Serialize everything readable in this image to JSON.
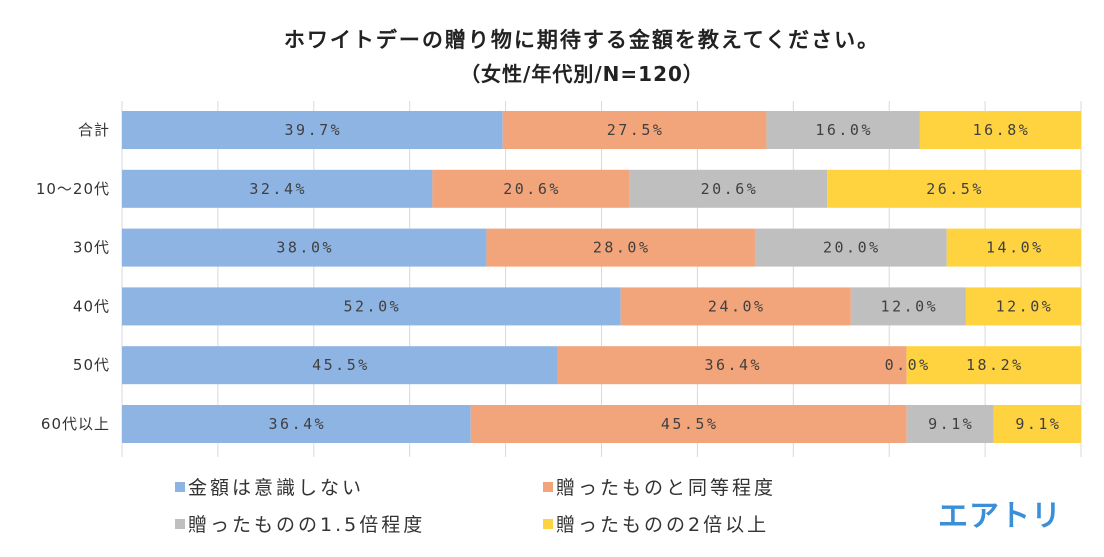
{
  "chart_data": {
    "type": "bar",
    "orientation": "horizontal",
    "stacking": "percent",
    "title": "ホワイトデーの贈り物に期待する金額を教えてください。",
    "subtitle": "（女性/年代別/N=120）",
    "xlabel": "",
    "ylabel": "",
    "xlim": [
      0,
      100
    ],
    "grid_step": 10,
    "grid": true,
    "legend_position": "bottom",
    "categories": [
      "合計",
      "10〜20代",
      "30代",
      "40代",
      "50代",
      "60代以上"
    ],
    "series": [
      {
        "name": "金額は意識しない",
        "color": "#8EB4E3",
        "values": [
          39.7,
          32.4,
          38.0,
          52.0,
          45.5,
          36.4
        ],
        "labels": [
          "39.7%",
          "32.4%",
          "38.0%",
          "52.0%",
          "45.5%",
          "36.4%"
        ]
      },
      {
        "name": "贈ったものと同等程度",
        "color": "#F2A57A",
        "values": [
          27.5,
          20.6,
          28.0,
          24.0,
          36.4,
          45.5
        ],
        "labels": [
          "27.5%",
          "20.6%",
          "28.0%",
          "24.0%",
          "36.4%",
          "45.5%"
        ]
      },
      {
        "name": "贈ったものの1.5倍程度",
        "color": "#BFBFBF",
        "values": [
          16.0,
          20.6,
          20.0,
          12.0,
          0.0,
          9.1
        ],
        "labels": [
          "16.0%",
          "20.6%",
          "20.0%",
          "12.0%",
          "0.0%",
          "9.1%"
        ]
      },
      {
        "name": "贈ったものの2倍以上",
        "color": "#FFD340",
        "values": [
          16.8,
          26.5,
          14.0,
          12.0,
          18.2,
          9.1
        ],
        "labels": [
          "16.8%",
          "26.5%",
          "14.0%",
          "12.0%",
          "18.2%",
          "9.1%"
        ]
      }
    ]
  },
  "brand": {
    "logo_text": "エアトリ",
    "color": "#3A8FD8"
  },
  "colors": {
    "grid": "#D9D9D9"
  }
}
